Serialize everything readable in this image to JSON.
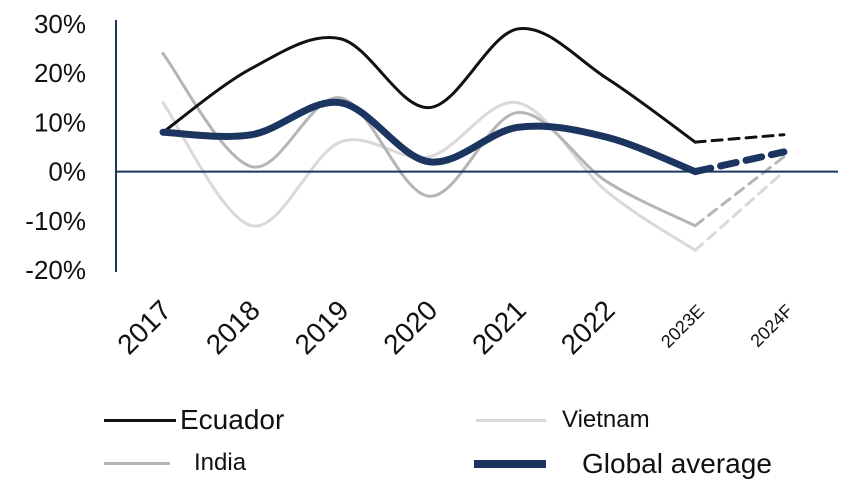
{
  "chart_data": {
    "type": "line",
    "categories": [
      "2017",
      "2018",
      "2019",
      "2020",
      "2021",
      "2022",
      "2023E",
      "2024F"
    ],
    "y_ticks": [
      "30%",
      "20%",
      "10%",
      "0%",
      "-10%",
      "-20%"
    ],
    "ylim": [
      -20,
      30
    ],
    "y_unit": "%",
    "grid": false,
    "legend_position": "bottom",
    "estimated_from_index": 6,
    "series": [
      {
        "name": "Ecuador",
        "color": "#111111",
        "values": [
          8,
          21,
          27,
          13,
          29,
          19,
          6,
          7.5
        ]
      },
      {
        "name": "India",
        "color": "#b5b5b5",
        "values": [
          24,
          1,
          15,
          -5,
          12,
          -2,
          -11,
          3
        ]
      },
      {
        "name": "Vietnam",
        "color": "#d9d9d9",
        "values": [
          14,
          -11,
          6,
          3,
          14,
          -4,
          -16,
          0
        ]
      },
      {
        "name": "Global average",
        "color": "#1b3560",
        "values": [
          8,
          7.5,
          14,
          2,
          9,
          7,
          0,
          4
        ]
      }
    ]
  },
  "legend": {
    "ecuador": "Ecuador",
    "india": "India",
    "vietnam": "Vietnam",
    "global": "Global average"
  }
}
